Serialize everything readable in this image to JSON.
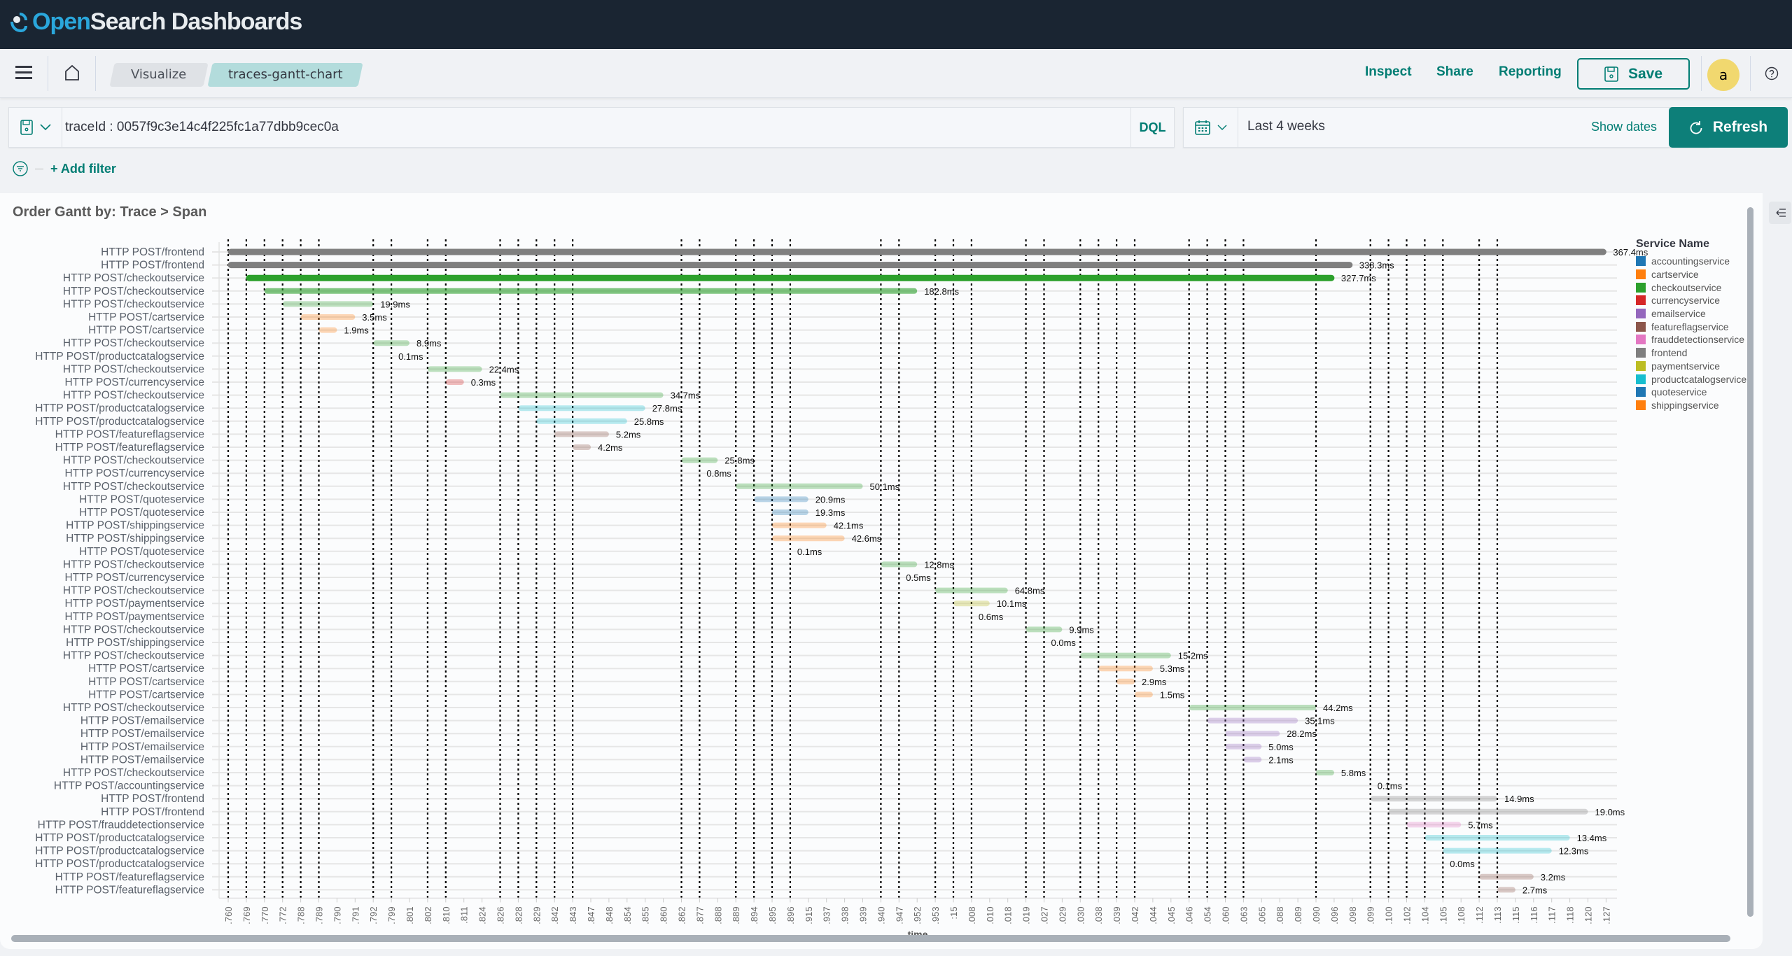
{
  "app": {
    "brand_open": "Open",
    "brand_rest": "Search Dashboards"
  },
  "header": {
    "breadcrumbs": [
      "Visualize",
      "traces-gantt-chart"
    ],
    "links": {
      "inspect": "Inspect",
      "share": "Share",
      "reporting": "Reporting"
    },
    "save_label": "Save",
    "avatar_initial": "a"
  },
  "query": {
    "value": "traceId : 0057f9c3e14c4f225fc1a77dbb9cec0a",
    "language": "DQL"
  },
  "date_picker": {
    "range": "Last 4 weeks",
    "show_dates": "Show dates"
  },
  "refresh_label": "Refresh",
  "filter": {
    "add_label": "+ Add filter"
  },
  "colors": {
    "accent": "#017d73",
    "topbar": "#1a2532",
    "refresh": "#0d7f79"
  },
  "chart_data": {
    "type": "gantt",
    "title": "Order Gantt by: Trace > Span",
    "xlabel": "time",
    "grid": true,
    "legend_placement": "right",
    "legend_title": "Service Name",
    "legend": [
      {
        "name": "accountingservice",
        "color": "#1f77b4"
      },
      {
        "name": "cartservice",
        "color": "#ff7f0e"
      },
      {
        "name": "checkoutservice",
        "color": "#2ca02c"
      },
      {
        "name": "currencyservice",
        "color": "#d62728"
      },
      {
        "name": "emailservice",
        "color": "#9467bd"
      },
      {
        "name": "featureflagservice",
        "color": "#8c564b"
      },
      {
        "name": "frauddetectionservice",
        "color": "#e377c2"
      },
      {
        "name": "frontend",
        "color": "#7f7f7f"
      },
      {
        "name": "paymentservice",
        "color": "#bcbd22"
      },
      {
        "name": "productcatalogservice",
        "color": "#17becf"
      },
      {
        "name": "quoteservice",
        "color": "#1f77b4"
      },
      {
        "name": "shippingservice",
        "color": "#ff7f0e"
      }
    ],
    "x_ticks": [
      ".760",
      ".769",
      ".770",
      ".772",
      ".788",
      ".789",
      ".790",
      ".791",
      ".792",
      ".799",
      ".801",
      ".802",
      ".810",
      ".811",
      ".824",
      ".826",
      ".828",
      ".829",
      ".842",
      ".843",
      ".847",
      ".848",
      ".854",
      ".855",
      ".860",
      ".862",
      ".877",
      ".888",
      ".889",
      ".894",
      ".895",
      ".896",
      ".915",
      ".937",
      ".938",
      ".939",
      ".940",
      ".947",
      ".952",
      ".953",
      ":15",
      ".008",
      ".010",
      ".018",
      ".019",
      ".027",
      ".029",
      ".030",
      ".038",
      ".039",
      ".042",
      ".044",
      ".045",
      ".046",
      ".054",
      ".060",
      ".063",
      ".065",
      ".088",
      ".089",
      ".090",
      ".096",
      ".098",
      ".099",
      ".100",
      ".102",
      ".104",
      ".105",
      ".108",
      ".112",
      ".113",
      ".115",
      ".116",
      ".117",
      ".118",
      ".120",
      ".127"
    ],
    "spans": [
      {
        "name": "HTTP POST/frontend",
        "service": "frontend",
        "start": ".760",
        "end": ".127",
        "duration": "367.4ms"
      },
      {
        "name": "HTTP POST/frontend",
        "service": "frontend",
        "start": ".760",
        "end": ".098",
        "duration": "338.3ms"
      },
      {
        "name": "HTTP POST/checkoutservice",
        "service": "checkoutservice",
        "start": ".769",
        "end": ".096",
        "duration": "327.7ms"
      },
      {
        "name": "HTTP POST/checkoutservice",
        "service": "checkoutservice",
        "start": ".770",
        "end": ".952",
        "duration": "182.8ms"
      },
      {
        "name": "HTTP POST/checkoutservice",
        "service": "checkoutservice",
        "start": ".772",
        "end": ".792",
        "duration": "19.9ms"
      },
      {
        "name": "HTTP POST/cartservice",
        "service": "cartservice",
        "start": ".788",
        "end": ".791",
        "duration": "3.5ms"
      },
      {
        "name": "HTTP POST/cartservice",
        "service": "cartservice",
        "start": ".789",
        "end": ".790",
        "duration": "1.9ms"
      },
      {
        "name": "HTTP POST/checkoutservice",
        "service": "checkoutservice",
        "start": ".792",
        "end": ".801",
        "duration": "8.9ms"
      },
      {
        "name": "HTTP POST/productcatalogservice",
        "service": "productcatalogservice",
        "start": ".799",
        "end": ".799",
        "duration": "0.1ms"
      },
      {
        "name": "HTTP POST/checkoutservice",
        "service": "checkoutservice",
        "start": ".802",
        "end": ".824",
        "duration": "22.4ms"
      },
      {
        "name": "HTTP POST/currencyservice",
        "service": "currencyservice",
        "start": ".810",
        "end": ".811",
        "duration": "0.3ms"
      },
      {
        "name": "HTTP POST/checkoutservice",
        "service": "checkoutservice",
        "start": ".826",
        "end": ".860",
        "duration": "34.7ms"
      },
      {
        "name": "HTTP POST/productcatalogservice",
        "service": "productcatalogservice",
        "start": ".828",
        "end": ".855",
        "duration": "27.8ms"
      },
      {
        "name": "HTTP POST/productcatalogservice",
        "service": "productcatalogservice",
        "start": ".829",
        "end": ".854",
        "duration": "25.8ms"
      },
      {
        "name": "HTTP POST/featureflagservice",
        "service": "featureflagservice",
        "start": ".842",
        "end": ".848",
        "duration": "5.2ms"
      },
      {
        "name": "HTTP POST/featureflagservice",
        "service": "featureflagservice",
        "start": ".843",
        "end": ".847",
        "duration": "4.2ms"
      },
      {
        "name": "HTTP POST/checkoutservice",
        "service": "checkoutservice",
        "start": ".862",
        "end": ".888",
        "duration": "25.8ms"
      },
      {
        "name": "HTTP POST/currencyservice",
        "service": "currencyservice",
        "start": ".877",
        "end": ".877",
        "duration": "0.8ms"
      },
      {
        "name": "HTTP POST/checkoutservice",
        "service": "checkoutservice",
        "start": ".889",
        "end": ".939",
        "duration": "50.1ms"
      },
      {
        "name": "HTTP POST/quoteservice",
        "service": "quoteservice",
        "start": ".894",
        "end": ".915",
        "duration": "20.9ms"
      },
      {
        "name": "HTTP POST/quoteservice",
        "service": "quoteservice",
        "start": ".895",
        "end": ".915",
        "duration": "19.3ms"
      },
      {
        "name": "HTTP POST/shippingservice",
        "service": "shippingservice",
        "start": ".895",
        "end": ".937",
        "duration": "42.1ms"
      },
      {
        "name": "HTTP POST/shippingservice",
        "service": "shippingservice",
        "start": ".895",
        "end": ".938",
        "duration": "42.6ms"
      },
      {
        "name": "HTTP POST/quoteservice",
        "service": "quoteservice",
        "start": ".896",
        "end": ".896",
        "duration": "0.1ms"
      },
      {
        "name": "HTTP POST/checkoutservice",
        "service": "checkoutservice",
        "start": ".940",
        "end": ".952",
        "duration": "12.8ms"
      },
      {
        "name": "HTTP POST/currencyservice",
        "service": "currencyservice",
        "start": ".947",
        "end": ".947",
        "duration": "0.5ms"
      },
      {
        "name": "HTTP POST/checkoutservice",
        "service": "checkoutservice",
        "start": ".953",
        "end": ".018",
        "duration": "64.8ms"
      },
      {
        "name": "HTTP POST/paymentservice",
        "service": "paymentservice",
        "start": ":15",
        "end": ".010",
        "duration": "10.1ms"
      },
      {
        "name": "HTTP POST/paymentservice",
        "service": "paymentservice",
        "start": ".008",
        "end": ".008",
        "duration": "0.6ms"
      },
      {
        "name": "HTTP POST/checkoutservice",
        "service": "checkoutservice",
        "start": ".019",
        "end": ".029",
        "duration": "9.9ms"
      },
      {
        "name": "HTTP POST/shippingservice",
        "service": "shippingservice",
        "start": ".027",
        "end": ".027",
        "duration": "0.0ms"
      },
      {
        "name": "HTTP POST/checkoutservice",
        "service": "checkoutservice",
        "start": ".030",
        "end": ".045",
        "duration": "15.2ms"
      },
      {
        "name": "HTTP POST/cartservice",
        "service": "cartservice",
        "start": ".038",
        "end": ".044",
        "duration": "5.3ms"
      },
      {
        "name": "HTTP POST/cartservice",
        "service": "cartservice",
        "start": ".039",
        "end": ".042",
        "duration": "2.9ms"
      },
      {
        "name": "HTTP POST/cartservice",
        "service": "cartservice",
        "start": ".042",
        "end": ".044",
        "duration": "1.5ms"
      },
      {
        "name": "HTTP POST/checkoutservice",
        "service": "checkoutservice",
        "start": ".046",
        "end": ".090",
        "duration": "44.2ms"
      },
      {
        "name": "HTTP POST/emailservice",
        "service": "emailservice",
        "start": ".054",
        "end": ".089",
        "duration": "35.1ms"
      },
      {
        "name": "HTTP POST/emailservice",
        "service": "emailservice",
        "start": ".060",
        "end": ".088",
        "duration": "28.2ms"
      },
      {
        "name": "HTTP POST/emailservice",
        "service": "emailservice",
        "start": ".060",
        "end": ".065",
        "duration": "5.0ms"
      },
      {
        "name": "HTTP POST/emailservice",
        "service": "emailservice",
        "start": ".063",
        "end": ".065",
        "duration": "2.1ms"
      },
      {
        "name": "HTTP POST/checkoutservice",
        "service": "checkoutservice",
        "start": ".090",
        "end": ".096",
        "duration": "5.8ms"
      },
      {
        "name": "HTTP POST/accountingservice",
        "service": "accountingservice",
        "start": ".099",
        "end": ".099",
        "duration": "0.1ms"
      },
      {
        "name": "HTTP POST/frontend",
        "service": "frontend",
        "start": ".099",
        "end": ".113",
        "duration": "14.9ms"
      },
      {
        "name": "HTTP POST/frontend",
        "service": "frontend",
        "start": ".100",
        "end": ".120",
        "duration": "19.0ms"
      },
      {
        "name": "HTTP POST/frauddetectionservice",
        "service": "frauddetectionservice",
        "start": ".102",
        "end": ".108",
        "duration": "5.7ms"
      },
      {
        "name": "HTTP POST/productcatalogservice",
        "service": "productcatalogservice",
        "start": ".104",
        "end": ".118",
        "duration": "13.4ms"
      },
      {
        "name": "HTTP POST/productcatalogservice",
        "service": "productcatalogservice",
        "start": ".105",
        "end": ".117",
        "duration": "12.3ms"
      },
      {
        "name": "HTTP POST/productcatalogservice",
        "service": "productcatalogservice",
        "start": ".105",
        "end": ".105",
        "duration": "0.0ms"
      },
      {
        "name": "HTTP POST/featureflagservice",
        "service": "featureflagservice",
        "start": ".112",
        "end": ".116",
        "duration": "3.2ms"
      },
      {
        "name": "HTTP POST/featureflagservice",
        "service": "featureflagservice",
        "start": ".113",
        "end": ".115",
        "duration": "2.7ms"
      }
    ]
  }
}
